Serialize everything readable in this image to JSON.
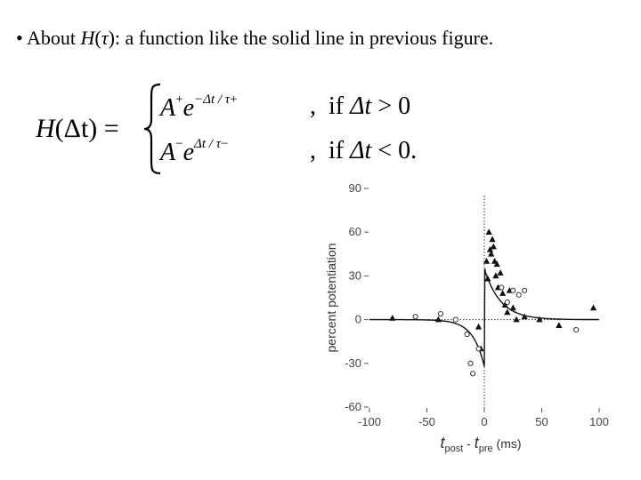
{
  "bullet": {
    "marker": "•",
    "text_before": " About ",
    "symbol": "H",
    "paren_open": "(",
    "tau": "τ",
    "paren_close": ")",
    "text_after": ": a function like the solid line in previous figure."
  },
  "formula": {
    "lhs_H": "H",
    "lhs_arg": "(Δt)",
    "equals": "=",
    "case1": {
      "base": "A",
      "sign": "+",
      "exp_e": "e",
      "exponent": "−Δt / τ",
      "exp_sign": "+",
      "comma": ",",
      "condition_if": "if",
      "condition_var": "Δt",
      "condition_rel": "> 0"
    },
    "case2": {
      "base": "A",
      "sign": "−",
      "exp_e": "e",
      "exponent": "Δt / τ",
      "exp_sign": "−",
      "comma": ",",
      "condition_if": "if",
      "condition_var": "Δt",
      "condition_rel": "< 0."
    }
  },
  "chart_data": {
    "type": "scatter",
    "ylabel": "percent potentiation",
    "xlabel_t1": "t",
    "xlabel_sub1": "post",
    "xlabel_mid": " - ",
    "xlabel_t2": "t",
    "xlabel_sub2": "pre",
    "xlabel_unit": " (ms)",
    "xlim": [
      -100,
      100
    ],
    "ylim": [
      -60,
      90
    ],
    "x_ticks": [
      "-100",
      "-50",
      "0",
      "50",
      "100"
    ],
    "y_ticks": [
      "90",
      "60",
      "30",
      "0",
      "-30",
      "-60"
    ],
    "fit_curve": {
      "style": "solid",
      "A_plus": 35,
      "tau_plus": 14,
      "A_minus": -32,
      "tau_minus": 10
    },
    "series": [
      {
        "marker": "triangle",
        "points": [
          [
            -80,
            1
          ],
          [
            -40,
            0
          ],
          [
            -5,
            -5
          ],
          [
            -3,
            -20
          ],
          [
            2,
            40
          ],
          [
            3,
            28
          ],
          [
            4,
            60
          ],
          [
            5,
            48
          ],
          [
            6,
            45
          ],
          [
            7,
            55
          ],
          [
            8,
            50
          ],
          [
            9,
            40
          ],
          [
            10,
            30
          ],
          [
            11,
            38
          ],
          [
            12,
            22
          ],
          [
            14,
            32
          ],
          [
            16,
            18
          ],
          [
            18,
            10
          ],
          [
            20,
            5
          ],
          [
            22,
            20
          ],
          [
            25,
            8
          ],
          [
            28,
            0
          ],
          [
            35,
            2
          ],
          [
            48,
            0
          ],
          [
            65,
            -4
          ],
          [
            95,
            8
          ]
        ]
      },
      {
        "marker": "circle",
        "points": [
          [
            -60,
            2
          ],
          [
            -38,
            4
          ],
          [
            -25,
            0
          ],
          [
            -15,
            -10
          ],
          [
            -12,
            -30
          ],
          [
            -10,
            -37
          ],
          [
            -5,
            -20
          ],
          [
            15,
            22
          ],
          [
            20,
            12
          ],
          [
            25,
            20
          ],
          [
            30,
            17
          ],
          [
            35,
            20
          ],
          [
            80,
            -7
          ]
        ]
      }
    ]
  }
}
